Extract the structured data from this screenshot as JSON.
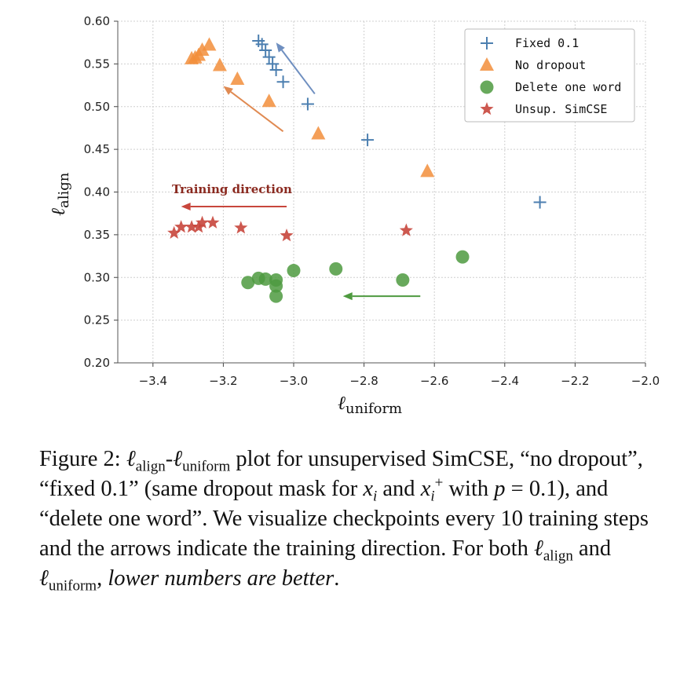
{
  "chart_data": {
    "type": "scatter",
    "xlabel_symbol": "ℓ",
    "xlabel_sub": "uniform",
    "ylabel_symbol": "ℓ",
    "ylabel_sub": "align",
    "xlim": [
      -3.5,
      -2.0
    ],
    "ylim": [
      0.2,
      0.6
    ],
    "xticks": [
      "−3.4",
      "−3.2",
      "−3.0",
      "−2.8",
      "−2.6",
      "−2.4",
      "−2.2",
      "−2.0"
    ],
    "yticks": [
      "0.20",
      "0.25",
      "0.30",
      "0.35",
      "0.40",
      "0.45",
      "0.50",
      "0.55",
      "0.60"
    ],
    "grid": true,
    "legend_position": "top-right",
    "series": [
      {
        "name": "Fixed 0.1",
        "marker": "plus",
        "color": "#4c7fb0",
        "points": [
          [
            -3.1,
            0.577
          ],
          [
            -3.09,
            0.573
          ],
          [
            -3.08,
            0.566
          ],
          [
            -3.07,
            0.558
          ],
          [
            -3.06,
            0.55
          ],
          [
            -3.05,
            0.543
          ],
          [
            -3.03,
            0.529
          ],
          [
            -2.96,
            0.503
          ],
          [
            -2.79,
            0.461
          ],
          [
            -2.3,
            0.388
          ]
        ]
      },
      {
        "name": "No dropout",
        "marker": "triangle",
        "color": "#f28e3b",
        "points": [
          [
            -3.24,
            0.572
          ],
          [
            -3.26,
            0.566
          ],
          [
            -3.27,
            0.56
          ],
          [
            -3.28,
            0.557
          ],
          [
            -3.29,
            0.556
          ],
          [
            -3.21,
            0.548
          ],
          [
            -3.16,
            0.532
          ],
          [
            -3.07,
            0.506
          ],
          [
            -2.93,
            0.468
          ],
          [
            -2.62,
            0.424
          ]
        ]
      },
      {
        "name": "Delete one word",
        "marker": "circle",
        "color": "#4e9a3f",
        "points": [
          [
            -3.13,
            0.294
          ],
          [
            -3.1,
            0.299
          ],
          [
            -3.08,
            0.298
          ],
          [
            -3.05,
            0.297
          ],
          [
            -3.05,
            0.29
          ],
          [
            -3.05,
            0.278
          ],
          [
            -3.0,
            0.308
          ],
          [
            -2.88,
            0.31
          ],
          [
            -2.69,
            0.297
          ],
          [
            -2.52,
            0.324
          ]
        ]
      },
      {
        "name": "Unsup. SimCSE",
        "marker": "star",
        "color": "#c8463c",
        "points": [
          [
            -3.34,
            0.352
          ],
          [
            -3.32,
            0.359
          ],
          [
            -3.29,
            0.359
          ],
          [
            -3.27,
            0.359
          ],
          [
            -3.26,
            0.364
          ],
          [
            -3.23,
            0.364
          ],
          [
            -3.15,
            0.358
          ],
          [
            -3.02,
            0.349
          ],
          [
            -2.68,
            0.355
          ]
        ]
      }
    ],
    "arrows": [
      {
        "color": "#6f8fc0",
        "from": [
          -2.94,
          0.515
        ],
        "to": [
          -3.05,
          0.575
        ]
      },
      {
        "color": "#e08a52",
        "from": [
          -3.03,
          0.471
        ],
        "to": [
          -3.2,
          0.524
        ]
      },
      {
        "color": "#c8463c",
        "from": [
          -3.02,
          0.383
        ],
        "to": [
          -3.32,
          0.383
        ]
      },
      {
        "color": "#4e9a3f",
        "from": [
          -2.64,
          0.278
        ],
        "to": [
          -2.86,
          0.278
        ]
      }
    ],
    "annotation": {
      "text": "Training direction",
      "color": "#8b2a20"
    }
  },
  "caption": {
    "label": "Figure 2:",
    "l1": "ℓ",
    "s1": "align",
    "dash": "-",
    "l2": "ℓ",
    "s2": "uniform",
    "t1": " plot for unsupervised SimCSE, “no dropout”, “fixed 0.1” (same dropout mask for ",
    "xi": "x",
    "i1": "i",
    "t2": " and ",
    "xp": "x",
    "i2": "i",
    "plus": "+",
    "t3": " with ",
    "p": "p",
    "t4": " = 0.1), and “delete one word”. We visualize checkpoints every 10 training steps and the arrows indicate the training direction. For both ",
    "l3": "ℓ",
    "s3": "align",
    "t5": " and ",
    "l4": "ℓ",
    "s4": "uniform",
    "t6": ", ",
    "emph": "lower numbers are better",
    "t7": "."
  }
}
